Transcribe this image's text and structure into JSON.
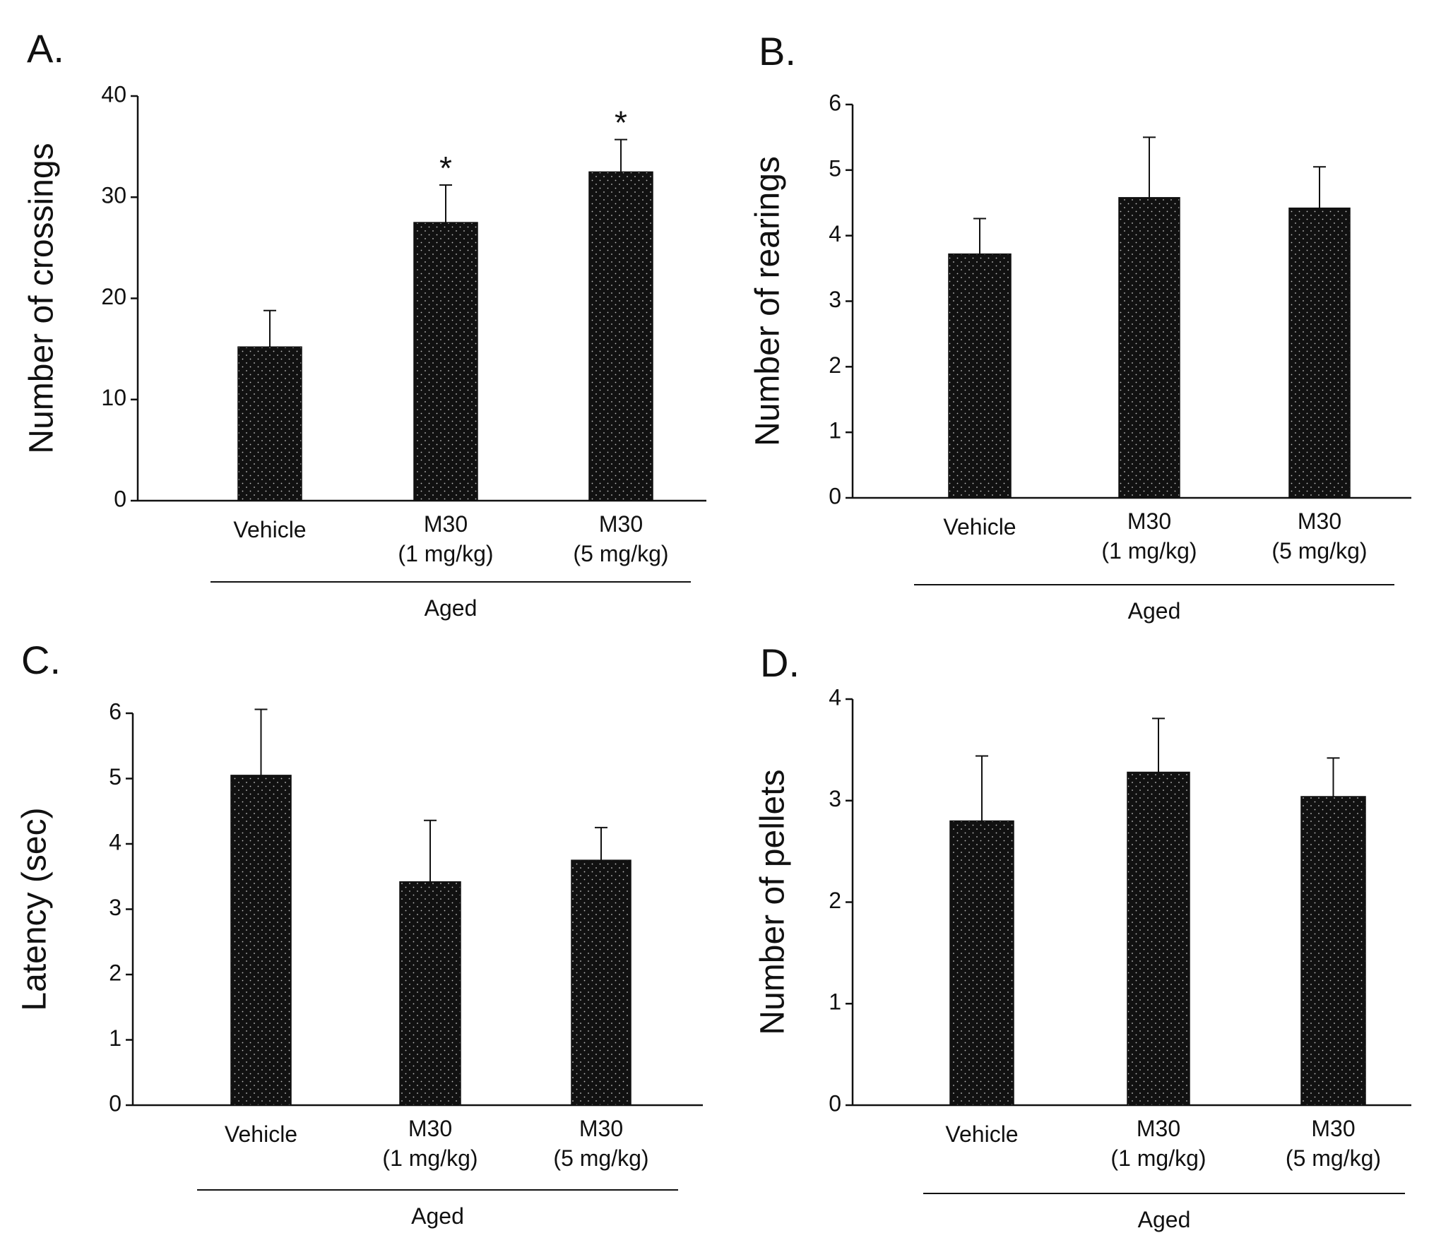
{
  "figure": {
    "background": "#ffffff",
    "bar_color": "#111111",
    "dot_color": "#ffffff"
  },
  "chart_data": [
    {
      "panel": "A.",
      "type": "bar",
      "ylabel": "Number of crossings",
      "ylim": [
        0,
        40
      ],
      "yticks": [
        0,
        10,
        20,
        30,
        40
      ],
      "categories": [
        [
          "Vehicle"
        ],
        [
          "M30",
          "(1 mg/kg)"
        ],
        [
          "M30",
          "(5 mg/kg)"
        ]
      ],
      "values": [
        15.2,
        27.5,
        32.5
      ],
      "errors": [
        3.6,
        3.7,
        3.2
      ],
      "significance": [
        "",
        "*",
        "*"
      ],
      "group_label": "Aged"
    },
    {
      "panel": "B.",
      "type": "bar",
      "ylabel": "Number of rearings",
      "ylim": [
        0,
        6
      ],
      "yticks": [
        0,
        1,
        2,
        3,
        4,
        5,
        6
      ],
      "categories": [
        [
          "Vehicle"
        ],
        [
          "M30",
          "(1 mg/kg)"
        ],
        [
          "M30",
          "(5 mg/kg)"
        ]
      ],
      "values": [
        3.72,
        4.58,
        4.42
      ],
      "errors": [
        0.54,
        0.92,
        0.63
      ],
      "significance": [
        "",
        "",
        ""
      ],
      "group_label": "Aged"
    },
    {
      "panel": "C.",
      "type": "bar",
      "ylabel": "Latency (sec)",
      "ylim": [
        0,
        6
      ],
      "yticks": [
        0,
        1,
        2,
        3,
        4,
        5,
        6
      ],
      "categories": [
        [
          "Vehicle"
        ],
        [
          "M30",
          "(1 mg/kg)"
        ],
        [
          "M30",
          "(5 mg/kg)"
        ]
      ],
      "values": [
        5.05,
        3.42,
        3.75
      ],
      "errors": [
        1.01,
        0.94,
        0.5
      ],
      "significance": [
        "",
        "",
        ""
      ],
      "group_label": "Aged"
    },
    {
      "panel": "D.",
      "type": "bar",
      "ylabel": "Number of pellets",
      "ylim": [
        0,
        4
      ],
      "yticks": [
        0,
        1,
        2,
        3,
        4
      ],
      "categories": [
        [
          "Vehicle"
        ],
        [
          "M30",
          "(1 mg/kg)"
        ],
        [
          "M30",
          "(5 mg/kg)"
        ]
      ],
      "values": [
        2.8,
        3.28,
        3.04
      ],
      "errors": [
        0.64,
        0.53,
        0.38
      ],
      "significance": [
        "",
        "",
        ""
      ],
      "group_label": "Aged"
    }
  ]
}
